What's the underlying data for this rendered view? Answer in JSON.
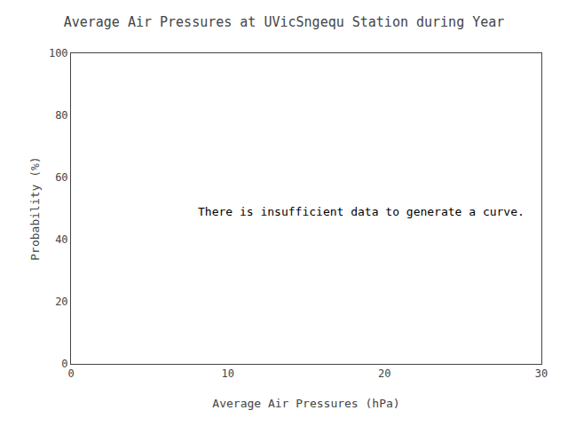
{
  "chart_data": {
    "type": "line",
    "title": "Average Air Pressures at UVicSngequ Station during Year",
    "x_label": "Average Air Pressures (hPa)",
    "y_label": "Probability (%)",
    "series": [],
    "xlim": [
      0,
      30
    ],
    "ylim": [
      0,
      100
    ],
    "xticks": [
      0,
      10,
      20,
      30
    ],
    "yticks": [
      0,
      20,
      40,
      60,
      80,
      100
    ],
    "grid": false,
    "annotations": [
      {
        "text": "There is insufficient data to generate a curve.",
        "x": 8,
        "y": 49
      }
    ]
  }
}
